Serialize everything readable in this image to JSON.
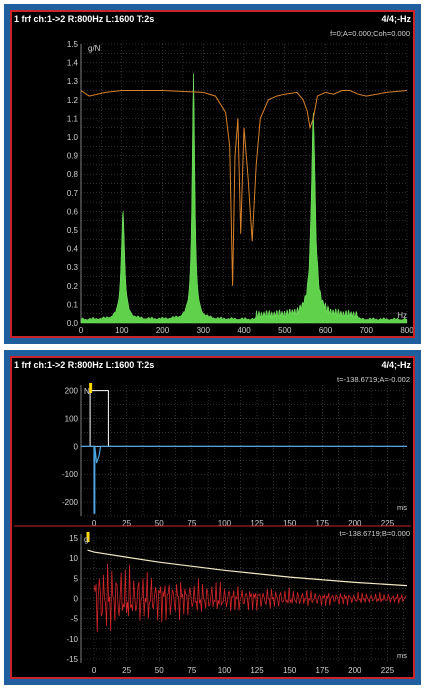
{
  "panel_top": {
    "header_left": "1 frf ch:1->2 R:800Hz L:1600 T:2s",
    "header_right": "4/4;-Hz",
    "readout": "f=0;A=0.000;Coh=0.000",
    "y_unit": "g/N",
    "x_unit": "Hz"
  },
  "panel_bottom": {
    "header_left": "1 frf ch:1->2 R:800Hz L:1600 T:2s",
    "header_right": "4/4;-Hz",
    "readout_a": "t=-138.6719;A=-0.002",
    "readout_b": "t=-138.6719;B=0.000",
    "y_unit_a": "N",
    "y_unit_b": "g",
    "x_unit_a": "ms",
    "x_unit_b": "ms"
  },
  "colors": {
    "frame": "#1f5f9e",
    "panel_border": "#c8242a",
    "frf_fill": "#5fd14a",
    "coherence": "#d8822c",
    "force": "#ffffff",
    "force_marker": "#ffd700",
    "force_trace": "#4aa3df",
    "response": "#d0262a",
    "envelope": "#f3e9c4",
    "grid": "#5a5a5a",
    "axis_text": "#d0d0d0"
  },
  "chart_data": [
    {
      "type": "area",
      "title": "",
      "xlabel": "Hz",
      "ylabel": "g/N",
      "xlim": [
        0,
        800
      ],
      "ylim": [
        0,
        1.5
      ],
      "x_ticks": [
        "0",
        "100",
        "200",
        "300",
        "400",
        "500",
        "600",
        "700",
        "800"
      ],
      "y_ticks": [
        "0.0",
        "0.1",
        "0.2",
        "0.3",
        "0.4",
        "0.5",
        "0.6",
        "0.7",
        "0.8",
        "0.9",
        "1.0",
        "1.1",
        "1.2",
        "1.3",
        "1.4",
        "1.5"
      ],
      "grid": true,
      "series": [
        {
          "name": "FRF magnitude",
          "style": "area",
          "peaks": [
            {
              "x": 103,
              "y": 0.59
            },
            {
              "x": 276,
              "y": 1.32
            },
            {
              "x": 570,
              "y": 1.08
            }
          ]
        },
        {
          "name": "Coherence",
          "style": "line",
          "x": [
            0,
            20,
            60,
            100,
            200,
            300,
            330,
            355,
            365,
            372,
            378,
            385,
            392,
            400,
            410,
            420,
            430,
            440,
            460,
            480,
            500,
            530,
            545,
            555,
            562,
            570,
            580,
            600,
            620,
            640,
            660,
            680,
            700,
            750,
            800
          ],
          "y": [
            1.25,
            1.22,
            1.24,
            1.25,
            1.25,
            1.24,
            1.22,
            1.13,
            0.95,
            0.2,
            0.9,
            1.1,
            0.48,
            1.05,
            0.78,
            0.44,
            0.85,
            1.1,
            1.2,
            1.22,
            1.23,
            1.24,
            1.2,
            1.14,
            1.05,
            1.1,
            1.22,
            1.24,
            1.23,
            1.25,
            1.25,
            1.23,
            1.22,
            1.24,
            1.25
          ]
        }
      ]
    },
    {
      "type": "line",
      "title": "",
      "xlabel": "ms",
      "ylabel": "N",
      "xlim": [
        -10,
        240
      ],
      "ylim": [
        -250,
        220
      ],
      "x_ticks": [
        "0",
        "25",
        "50",
        "75",
        "100",
        "125",
        "150",
        "175",
        "200",
        "225"
      ],
      "y_ticks": [
        "200",
        "100",
        "0",
        "-100",
        "-200"
      ],
      "grid": true,
      "series": [
        {
          "name": "Force",
          "x": [
            -10,
            0,
            0,
            0.6,
            0.6,
            2,
            4,
            5,
            240
          ],
          "y": [
            0,
            0,
            -240,
            -240,
            0,
            -60,
            -30,
            0,
            0
          ]
        },
        {
          "name": "Force window",
          "x": [
            -3,
            -3,
            11,
            11
          ],
          "y": [
            0,
            200,
            200,
            0
          ]
        }
      ]
    },
    {
      "type": "line",
      "title": "",
      "xlabel": "ms",
      "ylabel": "g",
      "xlim": [
        -10,
        240
      ],
      "ylim": [
        -16,
        16
      ],
      "x_ticks": [
        "0",
        "25",
        "50",
        "75",
        "100",
        "125",
        "150",
        "175",
        "200",
        "225"
      ],
      "y_ticks": [
        "15",
        "10",
        "5",
        "0",
        "-5",
        "-10",
        "-15"
      ],
      "grid": true,
      "series": [
        {
          "name": "Response",
          "peak": 11,
          "decay_to": 2,
          "x_range": [
            0,
            240
          ]
        },
        {
          "name": "Exponential window",
          "x": [
            -5,
            0,
            50,
            100,
            150,
            200,
            240
          ],
          "y": [
            12,
            11.5,
            9,
            7,
            5.3,
            4,
            3.2
          ]
        }
      ]
    }
  ]
}
